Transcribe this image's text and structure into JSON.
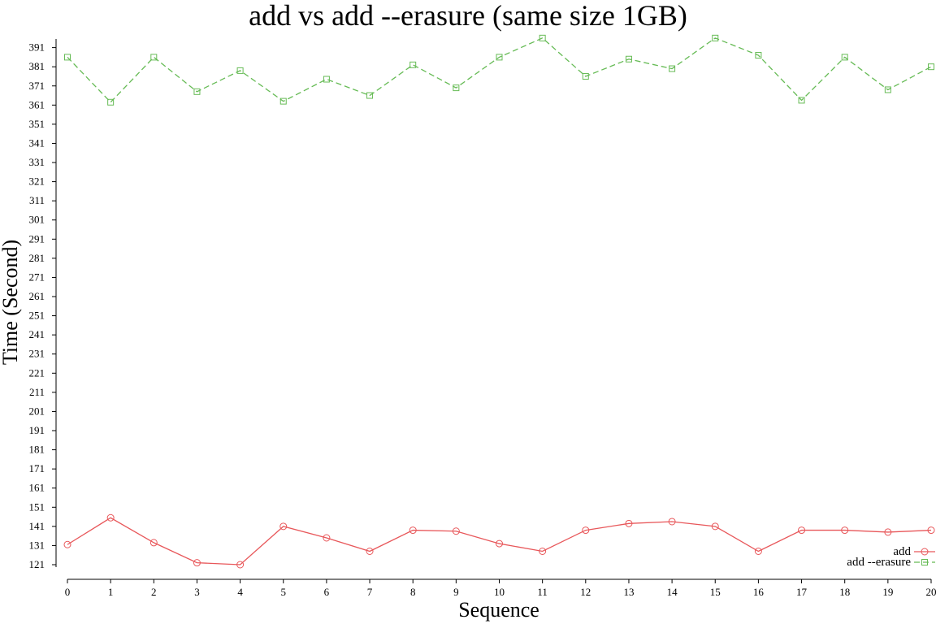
{
  "chart_data": {
    "type": "line",
    "title": "add vs add --erasure (same size 1GB)",
    "xlabel": "Sequence",
    "ylabel": "Time (Second)",
    "x": [
      0,
      1,
      2,
      3,
      4,
      5,
      6,
      7,
      8,
      9,
      10,
      11,
      12,
      13,
      14,
      15,
      16,
      17,
      18,
      19,
      20
    ],
    "xlim": [
      0,
      20
    ],
    "ylim": [
      121,
      397
    ],
    "yticks": [
      121,
      131,
      141,
      151,
      161,
      171,
      181,
      191,
      201,
      211,
      221,
      231,
      241,
      251,
      261,
      271,
      281,
      291,
      301,
      311,
      321,
      331,
      341,
      351,
      361,
      371,
      381,
      391
    ],
    "grid": false,
    "legend": "bottom-right",
    "series": [
      {
        "name": "add",
        "color": "#e8575a",
        "line": "solid",
        "marker": "circle",
        "values": [
          131.5,
          145.5,
          132.5,
          122,
          121,
          141,
          135,
          128,
          139,
          138.5,
          132,
          128,
          139,
          142.5,
          143.5,
          141,
          128,
          139,
          139,
          138,
          139
        ]
      },
      {
        "name": "add --erasure",
        "color": "#66bb55",
        "line": "dashed",
        "marker": "square",
        "values": [
          386,
          362.5,
          386,
          368,
          379,
          363,
          374.5,
          366,
          382,
          370,
          386,
          396,
          376,
          385,
          380,
          396,
          387,
          363.5,
          386,
          369,
          381
        ]
      }
    ]
  }
}
